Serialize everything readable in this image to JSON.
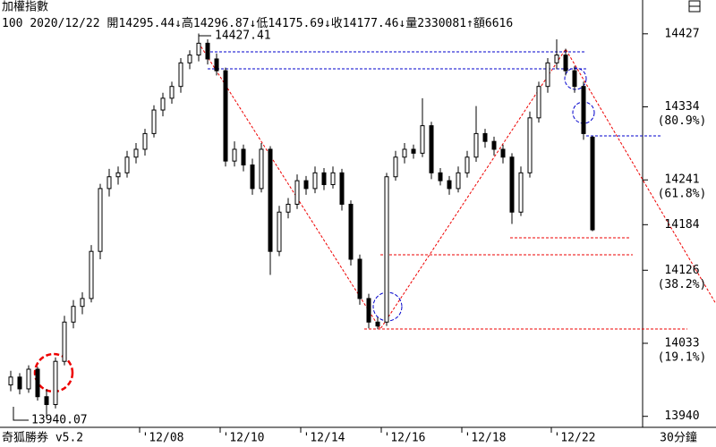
{
  "chart_data": {
    "type": "candlestick",
    "title": "加權指數",
    "info": {
      "code": "100",
      "date": "2020/12/22",
      "open_label": "開",
      "high_label": "↓高",
      "low_label": "↓低",
      "close_label": "↓收",
      "volume_label": "↓量",
      "volume": 2330081,
      "amount_label": "↑額",
      "amount_shown": "6616"
    },
    "annotations": {
      "high": "14427.41",
      "low": "13940.07"
    },
    "footer": {
      "brand": "奇狐勝券 v5.2",
      "period": "30分鐘"
    },
    "categories": [
      null,
      null,
      null,
      null,
      null,
      null,
      null,
      null,
      null,
      null,
      null,
      null,
      null,
      null,
      null,
      null,
      null,
      "'12/08",
      null,
      null,
      null,
      null,
      null,
      null,
      null,
      null,
      "'12/10",
      null,
      null,
      null,
      null,
      null,
      null,
      null,
      null,
      "'12/14",
      null,
      null,
      null,
      null,
      null,
      null,
      null,
      null,
      "'12/16",
      null,
      null,
      null,
      null,
      null,
      null,
      null,
      null,
      "'12/18",
      null,
      null,
      null,
      null,
      null,
      null,
      null,
      null,
      null,
      "'12/22",
      null,
      null
    ],
    "open": [
      13980,
      13990,
      13975,
      14000,
      13965,
      13955,
      14010,
      14060,
      14080,
      14090,
      14150,
      14230,
      14245,
      14250,
      14270,
      14280,
      14300,
      14330,
      14345,
      14360,
      14390,
      14400,
      14415,
      14395,
      14380,
      14265,
      14280,
      14260,
      14230,
      14280,
      14150,
      14200,
      14210,
      14240,
      14230,
      14250,
      14235,
      14250,
      14210,
      14140,
      14090,
      14060,
      14060,
      14245,
      14270,
      14280,
      14275,
      14310,
      14250,
      14240,
      14230,
      14250,
      14270,
      14300,
      14290,
      14280,
      14270,
      14200,
      14250,
      14320,
      14360,
      14390,
      14400,
      14380,
      14360,
      14295.44
    ],
    "high": [
      13998,
      13995,
      14005,
      14003,
      13975,
      14015,
      14068,
      14088,
      14098,
      14158,
      14236,
      14255,
      14258,
      14278,
      14288,
      14306,
      14336,
      14352,
      14366,
      14396,
      14406,
      14427.41,
      14420,
      14402,
      14384,
      14290,
      14286,
      14268,
      14288,
      14284,
      14208,
      14218,
      14248,
      14246,
      14258,
      14256,
      14258,
      14255,
      14215,
      14146,
      14096,
      14066,
      14250,
      14278,
      14288,
      14286,
      14345,
      14315,
      14256,
      14246,
      14258,
      14278,
      14335,
      14306,
      14296,
      14286,
      14275,
      14258,
      14328,
      14366,
      14396,
      14420,
      14408,
      14386,
      14366,
      14296.87
    ],
    "low": [
      13972,
      13968,
      13970,
      13960,
      13940,
      13950,
      14005,
      14052,
      14070,
      14085,
      14140,
      14220,
      14235,
      14244,
      14262,
      14272,
      14295,
      14322,
      14338,
      14352,
      14382,
      14392,
      14388,
      14374,
      14258,
      14258,
      14252,
      14222,
      14225,
      14120,
      14144,
      14192,
      14204,
      14222,
      14224,
      14228,
      14230,
      14202,
      14132,
      14082,
      14052,
      14051,
      14055,
      14240,
      14262,
      14268,
      14270,
      14242,
      14234,
      14222,
      14225,
      14244,
      14264,
      14282,
      14272,
      14262,
      14185,
      14195,
      14244,
      14314,
      14352,
      14382,
      14374,
      14352,
      14292,
      14175.69
    ],
    "close": [
      13990,
      13975,
      14000,
      13965,
      13955,
      14010,
      14060,
      14080,
      14090,
      14150,
      14230,
      14245,
      14250,
      14270,
      14280,
      14300,
      14330,
      14345,
      14360,
      14390,
      14400,
      14415,
      14395,
      14380,
      14265,
      14280,
      14260,
      14230,
      14280,
      14150,
      14200,
      14210,
      14240,
      14230,
      14250,
      14235,
      14250,
      14210,
      14140,
      14090,
      14060,
      14055,
      14245,
      14270,
      14280,
      14275,
      14310,
      14250,
      14240,
      14230,
      14250,
      14270,
      14300,
      14290,
      14280,
      14270,
      14200,
      14250,
      14320,
      14360,
      14390,
      14400,
      14380,
      14360,
      14300,
      14177.46
    ],
    "up_color": "#ffffff",
    "down_color": "#000000",
    "ylim": [
      13926,
      14445
    ],
    "yticks": [
      14427,
      14334,
      14241,
      14184,
      14126,
      14033,
      13940
    ],
    "fib_levels": [
      {
        "value": 14334,
        "label": "(80.9%)"
      },
      {
        "value": 14241,
        "label": "(61.8%)"
      },
      {
        "value": 14126,
        "label": "(38.2%)"
      },
      {
        "value": 14033,
        "label": "(19.1%)"
      }
    ]
  }
}
